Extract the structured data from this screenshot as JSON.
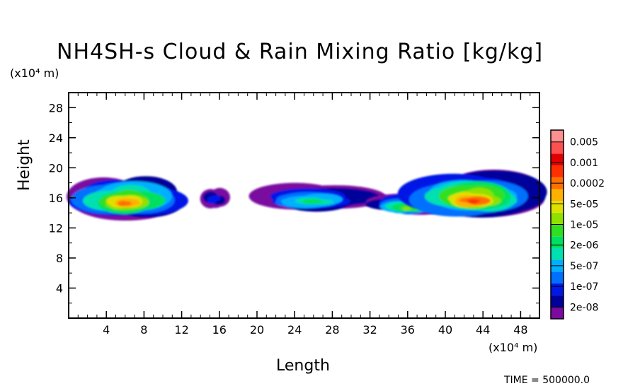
{
  "chart_data": {
    "type": "heatmap",
    "title": "NH4SH-s Cloud & Rain Mixing Ratio [kg/kg]",
    "xlabel": "Length",
    "ylabel": "Height",
    "x_unit": "(x10⁴ m)",
    "y_unit": "(x10⁴ m)",
    "xlim": [
      0,
      50
    ],
    "ylim": [
      0,
      30
    ],
    "xticks": [
      4,
      8,
      12,
      16,
      20,
      24,
      28,
      32,
      36,
      40,
      44,
      48
    ],
    "yticks": [
      4,
      8,
      12,
      16,
      20,
      24,
      28
    ],
    "legend": {
      "placement": "right",
      "levels": [
        "2e-08",
        "1e-07",
        "5e-07",
        "2e-06",
        "1e-05",
        "5e-05",
        "0.0002",
        "0.001",
        "0.005"
      ],
      "colors": [
        "#7a0aa0",
        "#00009a",
        "#0018e6",
        "#0070ff",
        "#00b0ff",
        "#00e0b0",
        "#00e060",
        "#30e020",
        "#90e000",
        "#e0e000",
        "#ffb000",
        "#ff7000",
        "#ff3000",
        "#e00000",
        "#ff5050",
        "#ff9090"
      ]
    },
    "cloud_regions": [
      {
        "name": "cloud-1",
        "x": [
          0,
          12
        ],
        "y": [
          12.8,
          19.5
        ],
        "peak_level": 11
      },
      {
        "name": "cloud-2",
        "x": [
          14,
          17
        ],
        "y": [
          14.5,
          17.5
        ],
        "peak_level": 2
      },
      {
        "name": "cloud-3",
        "x": [
          20,
          32
        ],
        "y": [
          14,
          18
        ],
        "peak_level": 6
      },
      {
        "name": "cloud-4",
        "x": [
          32,
          40
        ],
        "y": [
          13.5,
          17
        ],
        "peak_level": 8
      },
      {
        "name": "cloud-5",
        "x": [
          36,
          50
        ],
        "y": [
          13,
          20
        ],
        "peak_level": 12
      }
    ]
  },
  "time_label": "TIME = 500000.0"
}
